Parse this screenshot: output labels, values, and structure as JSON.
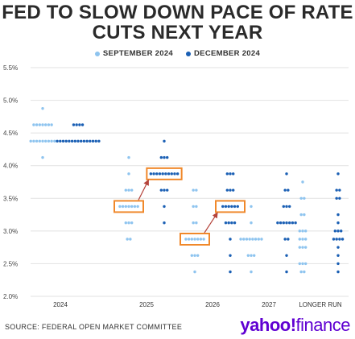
{
  "title_line1": "FED TO SLOW DOWN PACE OF RATE",
  "title_line2": "CUTS NEXT YEAR",
  "source": "SOURCE: FEDERAL OPEN MARKET COMMITTEE",
  "brand": {
    "main": "yahoo!",
    "secondary": "finance"
  },
  "colors": {
    "september": "#8ec4ef",
    "december": "#1a5fb4",
    "highlight": "#f0882a",
    "arrow": "#b5443c",
    "brand": "#6001d2",
    "grid": "#e2e2e2"
  },
  "chart_data": {
    "type": "scatter",
    "title": "FED TO SLOW DOWN PACE OF RATE CUTS NEXT YEAR",
    "legend": [
      "SEPTEMBER 2024",
      "DECEMBER 2024"
    ],
    "legend_position": "top",
    "categories": [
      "2024",
      "2025",
      "2026",
      "2027",
      "LONGER RUN"
    ],
    "ylim": [
      2.0,
      5.5
    ],
    "yticks": [
      "2.0%",
      "2.5%",
      "3.0%",
      "3.5%",
      "4.0%",
      "4.5%",
      "5.0%",
      "5.5%"
    ],
    "grid": true,
    "series": [
      {
        "name": "SEPTEMBER 2024",
        "groups": [
          {
            "category": "2024",
            "points": [
              {
                "y": 4.875,
                "n": 1
              },
              {
                "y": 4.625,
                "n": 7
              },
              {
                "y": 4.375,
                "n": 9
              },
              {
                "y": 4.125,
                "n": 1
              }
            ]
          },
          {
            "category": "2025",
            "points": [
              {
                "y": 4.125,
                "n": 1
              },
              {
                "y": 3.875,
                "n": 1
              },
              {
                "y": 3.625,
                "n": 3
              },
              {
                "y": 3.375,
                "n": 7
              },
              {
                "y": 3.125,
                "n": 3
              },
              {
                "y": 2.875,
                "n": 2
              }
            ]
          },
          {
            "category": "2026",
            "points": [
              {
                "y": 3.625,
                "n": 2
              },
              {
                "y": 3.375,
                "n": 2
              },
              {
                "y": 3.125,
                "n": 2
              },
              {
                "y": 2.875,
                "n": 7
              },
              {
                "y": 2.625,
                "n": 3
              },
              {
                "y": 2.375,
                "n": 1
              }
            ]
          },
          {
            "category": "2027",
            "points": [
              {
                "y": 3.375,
                "n": 1
              },
              {
                "y": 3.125,
                "n": 1
              },
              {
                "y": 2.875,
                "n": 8
              },
              {
                "y": 2.625,
                "n": 3
              },
              {
                "y": 2.375,
                "n": 1
              }
            ]
          },
          {
            "category": "LONGER RUN",
            "points": [
              {
                "y": 3.75,
                "n": 1
              },
              {
                "y": 3.5,
                "n": 2
              },
              {
                "y": 3.25,
                "n": 2
              },
              {
                "y": 3.0,
                "n": 3
              },
              {
                "y": 2.875,
                "n": 3
              },
              {
                "y": 2.75,
                "n": 3
              },
              {
                "y": 2.5,
                "n": 3
              },
              {
                "y": 2.375,
                "n": 2
              }
            ]
          }
        ]
      },
      {
        "name": "DECEMBER 2024",
        "groups": [
          {
            "category": "2024",
            "points": [
              {
                "y": 4.625,
                "n": 4
              },
              {
                "y": 4.375,
                "n": 15
              }
            ]
          },
          {
            "category": "2025",
            "points": [
              {
                "y": 4.375,
                "n": 1
              },
              {
                "y": 4.125,
                "n": 3
              },
              {
                "y": 3.875,
                "n": 10
              },
              {
                "y": 3.625,
                "n": 3
              },
              {
                "y": 3.375,
                "n": 1
              },
              {
                "y": 3.125,
                "n": 1
              }
            ]
          },
          {
            "category": "2026",
            "points": [
              {
                "y": 3.875,
                "n": 3
              },
              {
                "y": 3.625,
                "n": 3
              },
              {
                "y": 3.375,
                "n": 6
              },
              {
                "y": 3.125,
                "n": 4
              },
              {
                "y": 2.875,
                "n": 1
              },
              {
                "y": 2.625,
                "n": 1
              },
              {
                "y": 2.375,
                "n": 1
              }
            ]
          },
          {
            "category": "2027",
            "points": [
              {
                "y": 3.875,
                "n": 1
              },
              {
                "y": 3.625,
                "n": 2
              },
              {
                "y": 3.375,
                "n": 3
              },
              {
                "y": 3.125,
                "n": 7
              },
              {
                "y": 2.875,
                "n": 2
              },
              {
                "y": 2.625,
                "n": 1
              },
              {
                "y": 2.375,
                "n": 1
              }
            ]
          },
          {
            "category": "LONGER RUN",
            "points": [
              {
                "y": 3.875,
                "n": 1
              },
              {
                "y": 3.625,
                "n": 2
              },
              {
                "y": 3.5,
                "n": 2
              },
              {
                "y": 3.25,
                "n": 1
              },
              {
                "y": 3.125,
                "n": 1
              },
              {
                "y": 3.0,
                "n": 3
              },
              {
                "y": 2.875,
                "n": 4
              },
              {
                "y": 2.75,
                "n": 1
              },
              {
                "y": 2.625,
                "n": 1
              },
              {
                "y": 2.5,
                "n": 1
              },
              {
                "y": 2.375,
                "n": 1
              }
            ]
          }
        ]
      }
    ],
    "annotations": [
      {
        "type": "highlight-box",
        "category": "2025",
        "series": "SEPTEMBER 2024",
        "y": 3.375
      },
      {
        "type": "highlight-box",
        "category": "2025",
        "series": "DECEMBER 2024",
        "y": 3.875
      },
      {
        "type": "arrow",
        "category": "2025",
        "from_y": 3.375,
        "to_y": 3.875
      },
      {
        "type": "highlight-box",
        "category": "2026",
        "series": "SEPTEMBER 2024",
        "y": 2.875
      },
      {
        "type": "highlight-box",
        "category": "2026",
        "series": "DECEMBER 2024",
        "y": 3.375
      },
      {
        "type": "arrow",
        "category": "2026",
        "from_y": 2.875,
        "to_y": 3.375
      }
    ]
  }
}
